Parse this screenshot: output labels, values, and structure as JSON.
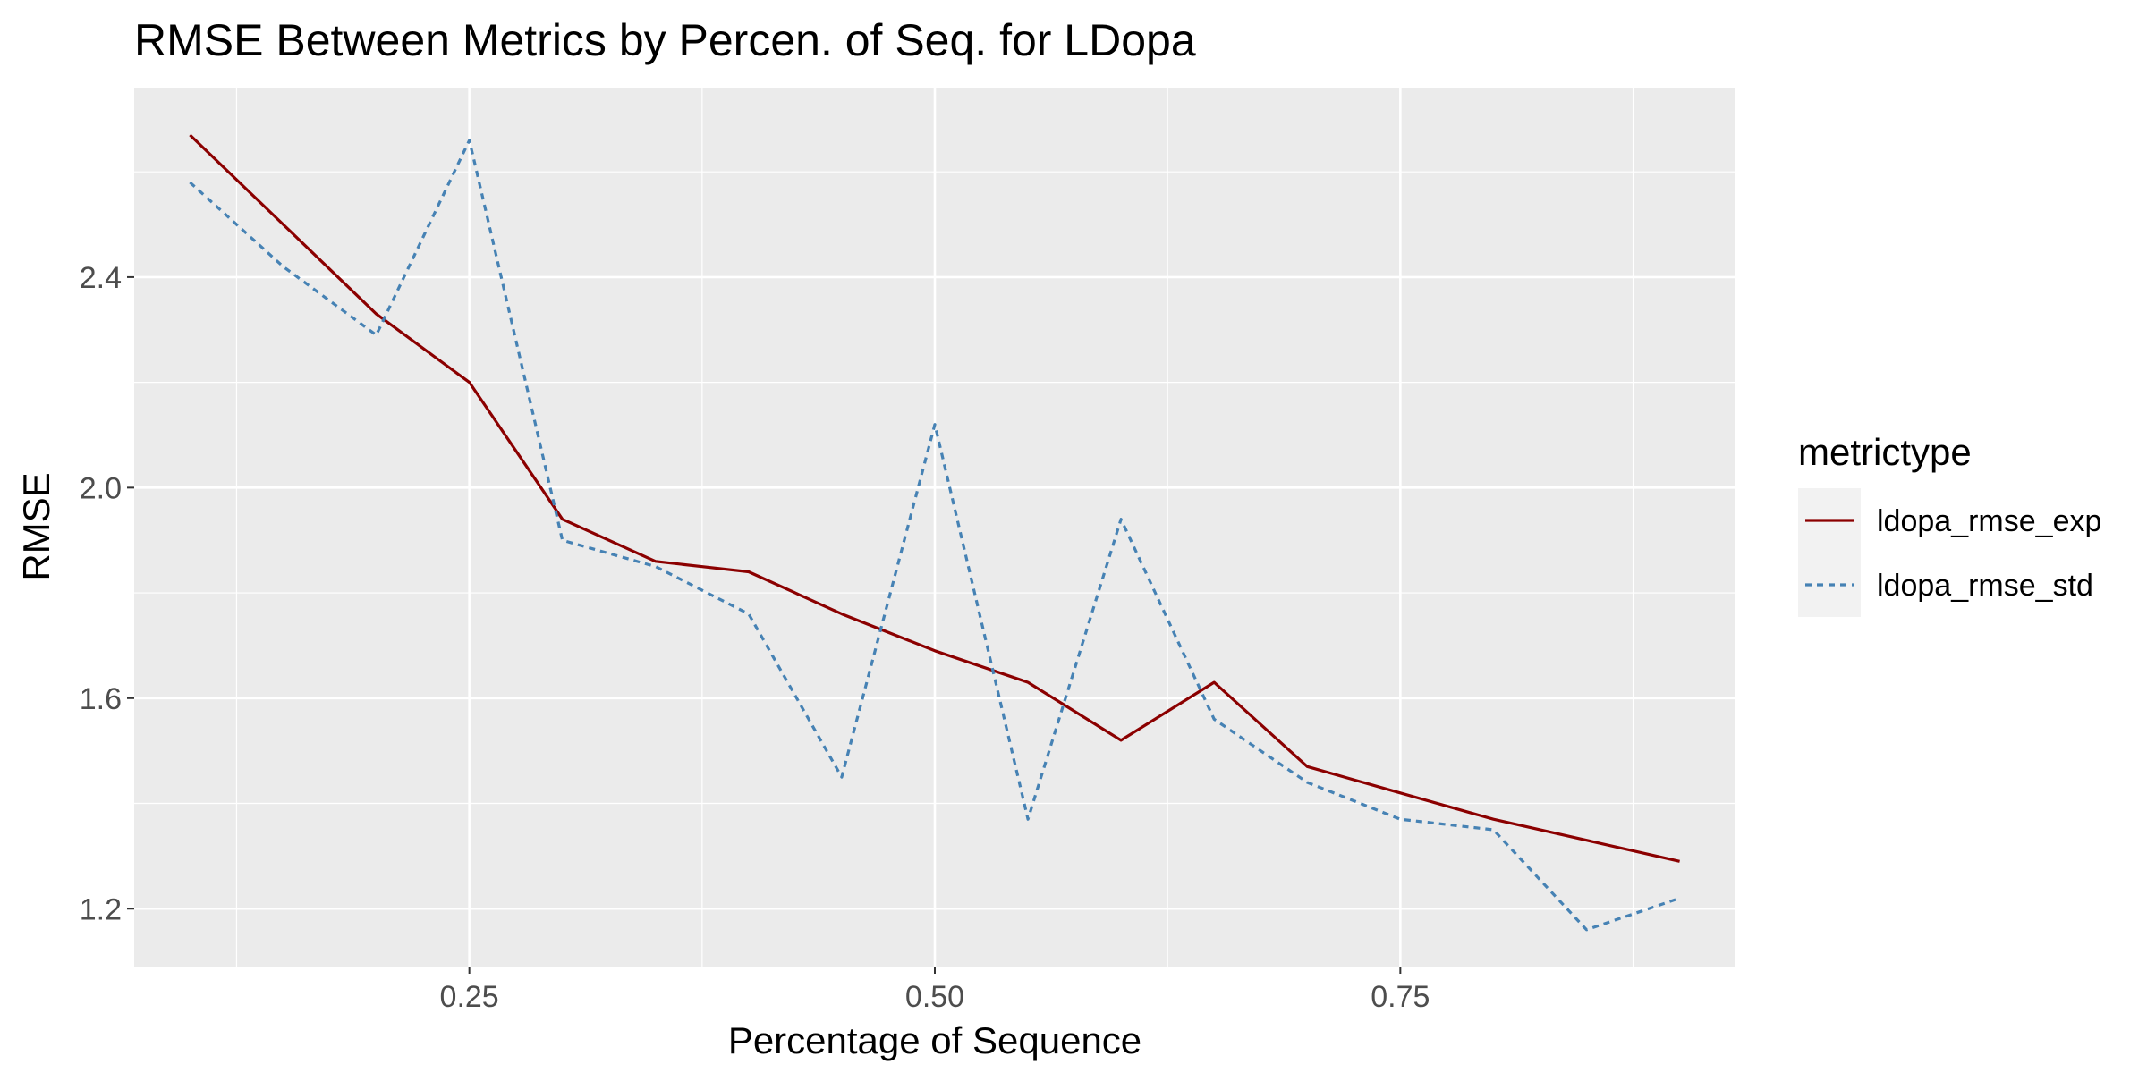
{
  "chart_data": {
    "type": "line",
    "title": "RMSE Between Metrics by Percen. of Seq. for LDopa",
    "xlabel": "Percentage of Sequence",
    "ylabel": "RMSE",
    "xlim": [
      0.07,
      0.93
    ],
    "ylim": [
      1.09,
      2.76
    ],
    "x_ticks": [
      0.25,
      0.5,
      0.75
    ],
    "x_tick_labels": [
      "0.25",
      "0.50",
      "0.75"
    ],
    "y_ticks": [
      1.2,
      1.6,
      2.0,
      2.4
    ],
    "y_tick_labels": [
      "1.2",
      "1.6",
      "2.0",
      "2.4"
    ],
    "grid": true,
    "legend": {
      "title": "metrictype",
      "position": "right"
    },
    "x": [
      0.1,
      0.15,
      0.2,
      0.25,
      0.3,
      0.35,
      0.4,
      0.45,
      0.5,
      0.55,
      0.6,
      0.65,
      0.7,
      0.75,
      0.8,
      0.85,
      0.9
    ],
    "series": [
      {
        "name": "ldopa_rmse_exp",
        "color": "#8b0000",
        "dash": "solid",
        "values": [
          2.67,
          2.5,
          2.33,
          2.2,
          1.94,
          1.86,
          1.84,
          1.76,
          1.69,
          1.63,
          1.52,
          1.63,
          1.47,
          1.42,
          1.37,
          1.33,
          1.29
        ]
      },
      {
        "name": "ldopa_rmse_std",
        "color": "#4682b4",
        "dash": "dotted",
        "values": [
          2.58,
          2.42,
          2.29,
          2.66,
          1.9,
          1.85,
          1.76,
          1.45,
          2.12,
          1.37,
          1.94,
          1.56,
          1.44,
          1.37,
          1.35,
          1.16,
          1.22
        ]
      }
    ]
  }
}
